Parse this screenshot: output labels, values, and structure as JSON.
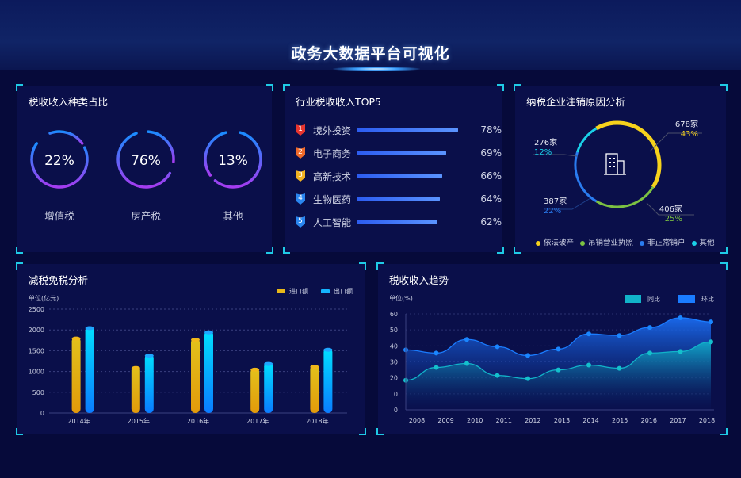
{
  "header": {
    "title": "政务大数据平台可视化"
  },
  "tax_types": {
    "title": "税收收入种类占比",
    "items": [
      {
        "label": "增值税",
        "value": "22%"
      },
      {
        "label": "房产税",
        "value": "76%"
      },
      {
        "label": "其他",
        "value": "13%"
      }
    ]
  },
  "industry_top5": {
    "title": "行业税收收入TOP5",
    "items": [
      {
        "rank": "1",
        "name": "境外投资",
        "value": "78%",
        "pct": 78,
        "color": "#e8352e"
      },
      {
        "rank": "2",
        "name": "电子商务",
        "value": "69%",
        "pct": 69,
        "color": "#f06a2a"
      },
      {
        "rank": "3",
        "name": "高新技术",
        "value": "66%",
        "pct": 66,
        "color": "#f2b322"
      },
      {
        "rank": "4",
        "name": "生物医药",
        "value": "64%",
        "pct": 64,
        "color": "#2a86f0"
      },
      {
        "rank": "5",
        "name": "人工智能",
        "value": "62%",
        "pct": 62,
        "color": "#2a86f0"
      }
    ]
  },
  "cancel_reasons": {
    "title": "纳税企业注销原因分析",
    "icon": "building-icon",
    "items": [
      {
        "name": "依法破产",
        "count": "678家",
        "pct": "43%",
        "value": 43,
        "color": "#f6d21c"
      },
      {
        "name": "吊销营业执照",
        "count": "406家",
        "pct": "25%",
        "value": 25,
        "color": "#7cc242"
      },
      {
        "name": "非正常销户",
        "count": "387家",
        "pct": "22%",
        "value": 22,
        "color": "#2a7cf0"
      },
      {
        "name": "其他",
        "count": "276家",
        "pct": "12%",
        "value": 12,
        "color": "#1ad0e8"
      }
    ]
  },
  "chart_data": [
    {
      "type": "bar",
      "title": "减税免税分析",
      "ylabel": "单位(亿元)",
      "ylim": [
        0,
        2500
      ],
      "yticks": [
        "0",
        "500",
        "1000",
        "1500",
        "2000",
        "2500"
      ],
      "categories": [
        "2014年",
        "2015年",
        "2016年",
        "2017年",
        "2018年"
      ],
      "series": [
        {
          "name": "进口额",
          "values": [
            1830,
            1120,
            1800,
            1080,
            1150
          ],
          "color": "#e8b81a"
        },
        {
          "name": "出口额",
          "values": [
            2080,
            1420,
            1980,
            1220,
            1560
          ],
          "color": "#14b4ff"
        }
      ],
      "grid": true,
      "legend": "top-right"
    },
    {
      "type": "area",
      "title": "税收收入趋势",
      "ylabel": "单位(%)",
      "ylim": [
        0,
        60
      ],
      "yticks": [
        "0",
        "10",
        "20",
        "30",
        "40",
        "50",
        "60"
      ],
      "categories": [
        "2008",
        "2009",
        "2010",
        "2011",
        "2012",
        "2013",
        "2014",
        "2015",
        "2016",
        "2017",
        "2018"
      ],
      "series": [
        {
          "name": "同比",
          "values": [
            18.5,
            26.5,
            29,
            21.5,
            19.5,
            25,
            28,
            26,
            35.5,
            36.5,
            42.5
          ],
          "color": "#11b3c9"
        },
        {
          "name": "环比",
          "values": [
            37.5,
            35.5,
            44,
            39.5,
            34,
            38,
            47.5,
            46.5,
            51.5,
            57.5,
            55
          ],
          "color": "#1a7cff"
        }
      ],
      "grid": true,
      "legend": "top-right"
    }
  ]
}
